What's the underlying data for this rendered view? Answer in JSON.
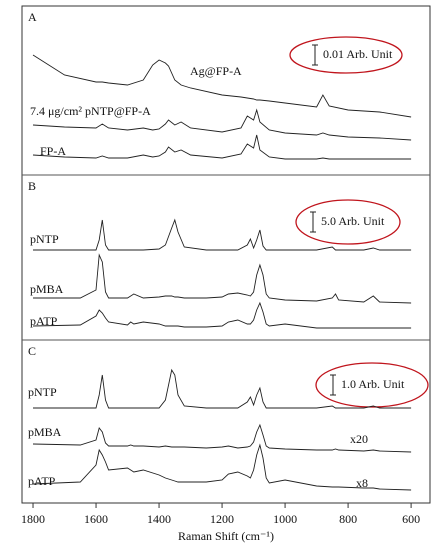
{
  "chart_data": [
    {
      "type": "line",
      "panel": "A",
      "xlim": [
        1835,
        540
      ],
      "ylim": [
        0,
        0.0825
      ],
      "scale_bar": {
        "value": 0.01,
        "label": "0.01 Arb. Unit"
      },
      "x": [
        1800,
        1700,
        1600,
        1580,
        1560,
        1500,
        1450,
        1420,
        1400,
        1380,
        1370,
        1350,
        1330,
        1300,
        1200,
        1140,
        1120,
        1100,
        1090,
        1080,
        1050,
        1000,
        900,
        880,
        860,
        800,
        700,
        600
      ],
      "series": [
        {
          "name": "Ag@FP-A",
          "color": "#222222",
          "values": [
            0.06,
            0.05,
            0.0465,
            0.0465,
            0.046,
            0.045,
            0.0475,
            0.055,
            0.0575,
            0.056,
            0.0545,
            0.0475,
            0.045,
            0.0435,
            0.04,
            0.039,
            0.0385,
            0.038,
            0.0375,
            0.0375,
            0.037,
            0.036,
            0.034,
            0.04,
            0.0345,
            0.0325,
            0.0315,
            0.029
          ]
        },
        {
          "name": "7.4 μg/cm² pNTP@FP-A",
          "color": "#222222",
          "values": [
            0.025,
            0.024,
            0.0235,
            0.0255,
            0.0235,
            0.0225,
            0.0235,
            0.0225,
            0.023,
            0.0255,
            0.0275,
            0.025,
            0.0265,
            0.0235,
            0.0215,
            0.0235,
            0.0295,
            0.0275,
            0.0325,
            0.0265,
            0.0225,
            0.021,
            0.02,
            0.021,
            0.02,
            0.019,
            0.0185,
            0.0175
          ]
        },
        {
          "name": "FP-A",
          "color": "#222222",
          "values": [
            0.01,
            0.009,
            0.0085,
            0.0095,
            0.0085,
            0.0085,
            0.01,
            0.009,
            0.0095,
            0.0115,
            0.014,
            0.0115,
            0.0125,
            0.01,
            0.0085,
            0.0105,
            0.0155,
            0.0135,
            0.02,
            0.0125,
            0.009,
            0.008,
            0.008,
            0.0085,
            0.008,
            0.008,
            0.008,
            0.008
          ]
        }
      ]
    },
    {
      "type": "line",
      "panel": "B",
      "xlim": [
        1835,
        540
      ],
      "ylim": [
        0,
        40.5
      ],
      "scale_bar": {
        "value": 5.0,
        "label": "5.0 Arb. Unit"
      },
      "x": [
        1800,
        1650,
        1600,
        1590,
        1580,
        1570,
        1560,
        1500,
        1490,
        1480,
        1450,
        1400,
        1380,
        1360,
        1350,
        1340,
        1320,
        1250,
        1200,
        1180,
        1150,
        1120,
        1110,
        1100,
        1090,
        1080,
        1070,
        1060,
        1050,
        1000,
        900,
        850,
        840,
        830,
        750,
        720,
        700,
        600
      ],
      "series": [
        {
          "name": "pNTP",
          "color": "#222222",
          "values": [
            22.5,
            22.5,
            22.5,
            25,
            30,
            23.75,
            22.5,
            22.5,
            22.5,
            22.5,
            22.5,
            22.75,
            23.75,
            28,
            30,
            27,
            23.25,
            22.5,
            22.5,
            22.5,
            22.5,
            23.75,
            25.25,
            23,
            25,
            27.5,
            23.5,
            22.5,
            22.5,
            22.5,
            22.5,
            23.25,
            22.5,
            22.5,
            22.5,
            23,
            22.5,
            22.5
          ]
        },
        {
          "name": "pMBA",
          "color": "#222222",
          "values": [
            10.5,
            10.5,
            12.5,
            21.25,
            19.5,
            12,
            10.5,
            10.5,
            11,
            11.5,
            10.5,
            10.75,
            11,
            11,
            10.75,
            10.75,
            10.5,
            10.5,
            10.75,
            11.5,
            11.75,
            11.25,
            11,
            12,
            16.25,
            18.75,
            16.25,
            11.5,
            10.5,
            10,
            9.75,
            10.5,
            11.5,
            10,
            9.5,
            11,
            9.5,
            9.25
          ]
        },
        {
          "name": "pATP",
          "color": "#222222",
          "values": [
            3.5,
            3.75,
            6,
            7.5,
            6.75,
            5.5,
            4.5,
            3.75,
            4.5,
            4,
            4.5,
            4,
            3.5,
            3.5,
            3.5,
            3.5,
            3.25,
            3.25,
            3.5,
            4.5,
            5,
            4,
            4,
            5,
            7.5,
            9.25,
            7,
            4,
            3.5,
            4,
            3,
            3,
            3,
            3,
            3,
            3,
            3,
            3
          ]
        }
      ]
    },
    {
      "type": "line",
      "panel": "C",
      "xlim": [
        1835,
        540
      ],
      "ylim": [
        0,
        7.9
      ],
      "xticks": [
        1800,
        1600,
        1400,
        1200,
        1000,
        800,
        600
      ],
      "xlabel": "Raman Shift (cm⁻¹)",
      "scale_bar": {
        "value": 1.0,
        "label": "1.0 Arb. Unit"
      },
      "x": [
        1800,
        1650,
        1600,
        1590,
        1580,
        1570,
        1560,
        1500,
        1490,
        1480,
        1450,
        1400,
        1380,
        1360,
        1350,
        1340,
        1320,
        1250,
        1200,
        1180,
        1150,
        1120,
        1110,
        1100,
        1090,
        1080,
        1070,
        1060,
        1050,
        1000,
        900,
        850,
        840,
        830,
        750,
        720,
        700,
        600
      ],
      "series": [
        {
          "name": "pNTP",
          "color": "#222222",
          "values": [
            4.6,
            4.6,
            4.6,
            5.25,
            6.25,
            5,
            4.6,
            4.6,
            4.6,
            4.6,
            4.6,
            4.6,
            5,
            6.5,
            6.25,
            5.25,
            4.7,
            4.6,
            4.6,
            4.6,
            4.6,
            4.9,
            5.15,
            4.75,
            5.25,
            5.6,
            4.9,
            4.6,
            4.6,
            4.6,
            4.6,
            4.7,
            4.6,
            4.6,
            4.6,
            4.7,
            4.6,
            4.6
          ]
        },
        {
          "name": "pMBA",
          "color": "#222222",
          "annotation": "x20",
          "values": [
            2.8,
            2.75,
            3,
            3.6,
            3.4,
            2.85,
            2.7,
            2.7,
            2.75,
            2.7,
            2.7,
            2.65,
            2.7,
            2.65,
            2.65,
            2.65,
            2.65,
            2.6,
            2.65,
            2.7,
            2.6,
            2.65,
            2.7,
            2.9,
            3.4,
            3.75,
            3.25,
            2.7,
            2.6,
            2.55,
            2.5,
            2.5,
            2.55,
            2.5,
            2.45,
            2.5,
            2.45,
            2.4
          ]
        },
        {
          "name": "pATP",
          "color": "#222222",
          "annotation": "x8",
          "values": [
            0.8,
            0.9,
            1.75,
            2.5,
            2.25,
            1.9,
            1.5,
            1.6,
            1.5,
            1.4,
            1.5,
            1.25,
            1.1,
            1.0,
            0.95,
            0.9,
            0.9,
            0.9,
            1.0,
            1.3,
            1.4,
            1.2,
            1.1,
            1.5,
            2.25,
            2.75,
            2.1,
            1.1,
            0.85,
            1.0,
            0.7,
            0.65,
            0.65,
            0.65,
            0.6,
            0.6,
            0.55,
            0.5
          ]
        }
      ]
    }
  ]
}
